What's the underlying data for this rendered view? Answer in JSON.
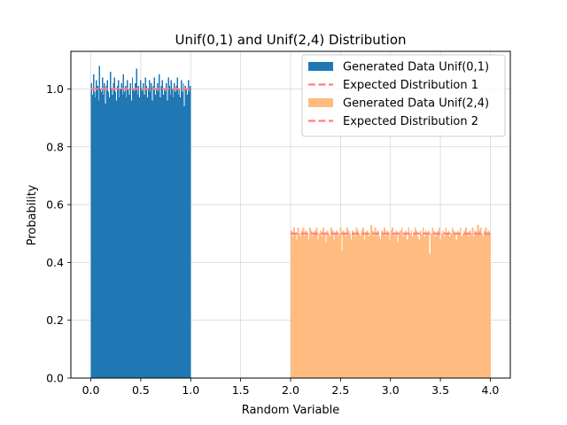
{
  "chart_data": {
    "type": "bar",
    "title": "Unif(0,1) and Unif(2,4) Distribution",
    "xlabel": "Random Variable",
    "ylabel": "Probability",
    "xlim": [
      -0.2,
      4.2
    ],
    "ylim": [
      0,
      1.13
    ],
    "grid": true,
    "legend_position": "top-right",
    "xticks": [
      {
        "value": 0.0,
        "label": "0.0"
      },
      {
        "value": 0.5,
        "label": "0.5"
      },
      {
        "value": 1.0,
        "label": "1.0"
      },
      {
        "value": 1.5,
        "label": "1.5"
      },
      {
        "value": 2.0,
        "label": "2.0"
      },
      {
        "value": 2.5,
        "label": "2.5"
      },
      {
        "value": 3.0,
        "label": "3.0"
      },
      {
        "value": 3.5,
        "label": "3.5"
      },
      {
        "value": 4.0,
        "label": "4.0"
      }
    ],
    "yticks": [
      {
        "value": 0.0,
        "label": "0.0"
      },
      {
        "value": 0.2,
        "label": "0.2"
      },
      {
        "value": 0.4,
        "label": "0.4"
      },
      {
        "value": 0.6,
        "label": "0.6"
      },
      {
        "value": 0.8,
        "label": "0.8"
      },
      {
        "value": 1.0,
        "label": "1.0"
      }
    ],
    "histograms": [
      {
        "name": "Generated Data Unif(0,1)",
        "color": "#1f77b4",
        "range": [
          0,
          1
        ],
        "values": [
          1.02,
          0.98,
          1.05,
          0.99,
          0.97,
          1.03,
          1.01,
          0.96,
          1.08,
          1.0,
          0.99,
          1.04,
          0.98,
          1.02,
          0.95,
          1.01,
          1.03,
          0.99,
          0.97,
          1.06,
          1.0,
          0.98,
          1.02,
          1.04,
          0.99,
          0.96,
          1.01,
          1.03,
          0.97,
          1.0,
          1.02,
          0.98,
          1.05,
          0.99,
          1.01,
          0.97,
          1.03,
          1.0,
          0.98,
          1.02,
          0.96,
          1.04,
          1.0,
          0.99,
          1.02,
          1.07,
          0.98,
          1.01,
          0.97,
          1.03,
          1.0,
          0.99,
          1.02,
          0.98,
          1.04,
          1.01,
          0.97,
          1.0,
          1.03,
          0.99,
          1.02,
          0.96,
          1.01,
          1.04,
          0.98,
          1.0,
          1.02,
          0.99,
          1.05,
          0.97,
          1.01,
          1.03,
          0.98,
          1.0,
          0.99,
          1.02,
          0.96,
          1.04,
          1.01,
          0.98,
          1.03,
          1.0,
          0.97,
          1.02,
          0.99,
          1.01,
          1.04,
          0.98,
          1.0,
          0.97,
          1.03,
          0.99,
          1.02,
          0.94,
          1.01,
          1.0,
          0.98,
          1.03,
          0.99,
          1.01
        ]
      },
      {
        "name": "Generated Data Unif(2,4)",
        "color": "#ffbb80",
        "range": [
          2,
          4
        ],
        "values": [
          0.51,
          0.49,
          0.52,
          0.5,
          0.48,
          0.52,
          0.5,
          0.49,
          0.51,
          0.52,
          0.49,
          0.51,
          0.5,
          0.48,
          0.52,
          0.51,
          0.49,
          0.5,
          0.51,
          0.52,
          0.48,
          0.5,
          0.51,
          0.49,
          0.52,
          0.5,
          0.47,
          0.51,
          0.5,
          0.49,
          0.52,
          0.51,
          0.48,
          0.5,
          0.51,
          0.49,
          0.5,
          0.52,
          0.44,
          0.51,
          0.5,
          0.49,
          0.52,
          0.51,
          0.5,
          0.48,
          0.51,
          0.5,
          0.49,
          0.52,
          0.51,
          0.5,
          0.49,
          0.51,
          0.52,
          0.48,
          0.5,
          0.51,
          0.49,
          0.5,
          0.53,
          0.51,
          0.49,
          0.52,
          0.5,
          0.51,
          0.49,
          0.48,
          0.51,
          0.5,
          0.52,
          0.49,
          0.51,
          0.5,
          0.48,
          0.51,
          0.52,
          0.5,
          0.49,
          0.51,
          0.47,
          0.5,
          0.51,
          0.52,
          0.49,
          0.5,
          0.51,
          0.48,
          0.52,
          0.5,
          0.51,
          0.49,
          0.5,
          0.52,
          0.51,
          0.49,
          0.48,
          0.51,
          0.5,
          0.52,
          0.49,
          0.51,
          0.5,
          0.51,
          0.43,
          0.5,
          0.52,
          0.51,
          0.49,
          0.5,
          0.51,
          0.52,
          0.48,
          0.5,
          0.51,
          0.49,
          0.52,
          0.5,
          0.51,
          0.49,
          0.5,
          0.52,
          0.51,
          0.5,
          0.48,
          0.51,
          0.5,
          0.52,
          0.49,
          0.5,
          0.51,
          0.52,
          0.5,
          0.49,
          0.51,
          0.5,
          0.52,
          0.49,
          0.51,
          0.5,
          0.53,
          0.51,
          0.52,
          0.5,
          0.49,
          0.51,
          0.52,
          0.5,
          0.51,
          0.5
        ]
      }
    ],
    "expected": [
      {
        "name": "Expected Distribution 1",
        "color": "#ff7f7f",
        "x": [
          0,
          1
        ],
        "y": 1.0
      },
      {
        "name": "Expected Distribution 2",
        "color": "#ff7f7f",
        "x": [
          2,
          4
        ],
        "y": 0.5
      }
    ],
    "legend": [
      {
        "label": "Generated Data Unif(0,1)",
        "kind": "patch",
        "color": "#1f77b4"
      },
      {
        "label": "Expected Distribution 1",
        "kind": "dashed-line",
        "color": "#ff7f7f"
      },
      {
        "label": "Generated Data Unif(2,4)",
        "kind": "patch",
        "color": "#ffbb80"
      },
      {
        "label": "Expected Distribution 2",
        "kind": "dashed-line",
        "color": "#ff7f7f"
      }
    ]
  }
}
